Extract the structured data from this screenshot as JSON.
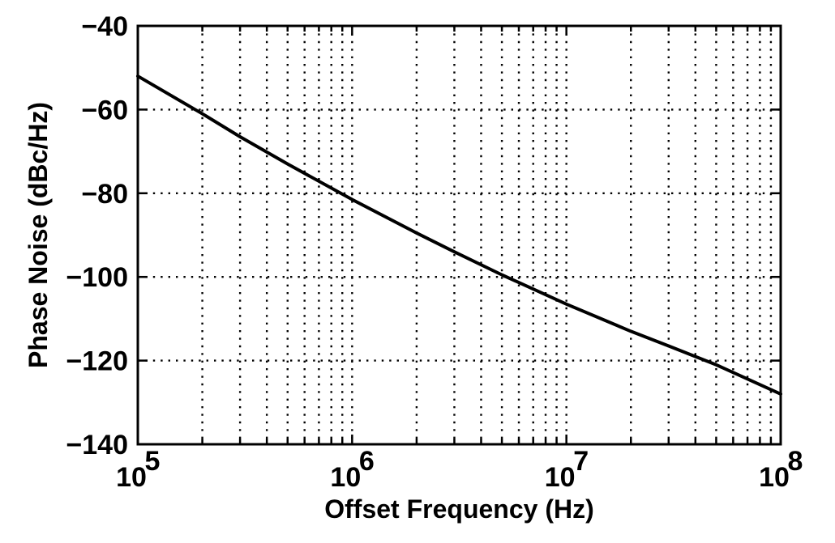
{
  "chart_data": {
    "type": "line",
    "title": "",
    "xlabel": "Offset Frequency (Hz)",
    "ylabel": "Phase Noise (dBc/Hz)",
    "x_scale": "log",
    "xlim": [
      100000,
      100000000
    ],
    "ylim": [
      -140,
      -40
    ],
    "x_ticks": [
      {
        "base": "10",
        "exp": "5"
      },
      {
        "base": "10",
        "exp": "6"
      },
      {
        "base": "10",
        "exp": "7"
      },
      {
        "base": "10",
        "exp": "8"
      }
    ],
    "y_ticks": [
      "−40",
      "−60",
      "−80",
      "−100",
      "−120",
      "−140"
    ],
    "grid": true,
    "legend": "none",
    "series": [
      {
        "x": [
          100000,
          200000,
          300000,
          500000,
          1000000,
          2000000,
          3000000,
          5000000,
          10000000,
          20000000,
          30000000,
          50000000,
          100000000
        ],
        "y": [
          -52,
          -61,
          -66.5,
          -73,
          -81.5,
          -89.5,
          -94,
          -99.5,
          -106.5,
          -113,
          -116.5,
          -121,
          -128
        ]
      }
    ],
    "colors": {
      "line": "#000000",
      "grid": "#000000",
      "background": "#ffffff"
    }
  }
}
